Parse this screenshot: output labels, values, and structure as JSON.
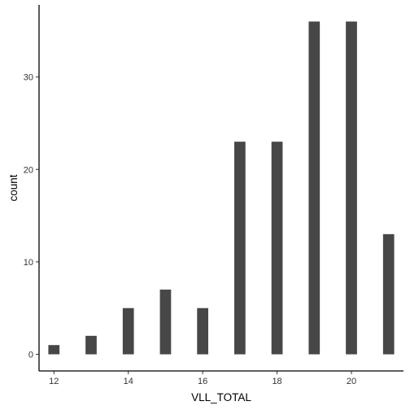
{
  "chart_data": {
    "type": "bar",
    "title": "",
    "xlabel": "VLL_TOTAL",
    "ylabel": "count",
    "x": [
      12,
      13,
      14,
      15,
      16,
      17,
      18,
      19,
      20,
      21
    ],
    "values": [
      1,
      2,
      5,
      7,
      5,
      23,
      23,
      36,
      36,
      13
    ],
    "xlim": [
      11.6,
      21.4
    ],
    "ylim": [
      -1.8,
      37.8
    ],
    "x_ticks": [
      12,
      14,
      16,
      18,
      20
    ],
    "y_ticks": [
      0,
      10,
      20,
      30
    ],
    "bar_width_x_units": 0.3,
    "grid": false,
    "legend": "none",
    "bar_color": "#474747",
    "axis_color": "#000000"
  }
}
